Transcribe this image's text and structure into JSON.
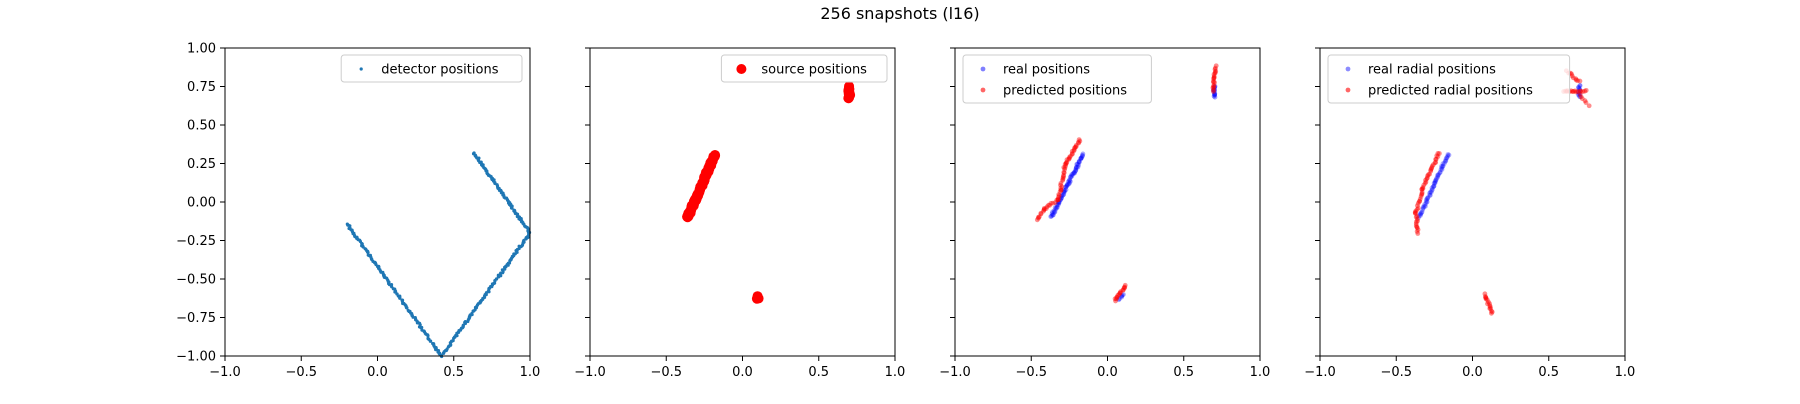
{
  "figure": {
    "title": "256 snapshots (l16)"
  },
  "chart_data": [
    {
      "type": "scatter",
      "id": "p1",
      "xlim": [
        -1.0,
        1.0
      ],
      "ylim": [
        -1.0,
        1.0
      ],
      "xticks": [
        "−1.0",
        "−0.5",
        "0.0",
        "0.5",
        "1.0"
      ],
      "yticks": [
        "−1.00",
        "−0.75",
        "−0.50",
        "−0.25",
        "0.00",
        "0.25",
        "0.50",
        "0.75",
        "1.00"
      ],
      "show_ytick_labels": true,
      "legend_loc": "upper right",
      "series": [
        {
          "name": "detector positions",
          "color": "#1f77b4",
          "marker_size": 1.6,
          "opacity": 1,
          "segments": [
            {
              "from": [
                -0.2,
                -0.14
              ],
              "to": [
                0.42,
                -1.0
              ],
              "n": 130
            },
            {
              "from": [
                0.42,
                -1.0
              ],
              "to": [
                1.0,
                -0.2
              ],
              "n": 130
            },
            {
              "from": [
                1.0,
                -0.2
              ],
              "to": [
                0.63,
                0.32
              ],
              "n": 90
            }
          ]
        }
      ]
    },
    {
      "type": "scatter",
      "id": "p2",
      "xlim": [
        -1.0,
        1.0
      ],
      "ylim": [
        -1.0,
        1.0
      ],
      "xticks": [
        "−1.0",
        "−0.5",
        "0.0",
        "0.5",
        "1.0"
      ],
      "yticks": [
        "−1.00",
        "−0.75",
        "−0.50",
        "−0.25",
        "0.00",
        "0.25",
        "0.50",
        "0.75",
        "1.00"
      ],
      "show_ytick_labels": false,
      "legend_loc": "upper right",
      "series": [
        {
          "name": "source positions",
          "color": "#ff0000",
          "marker_size": 5,
          "opacity": 1,
          "segments": [
            {
              "from": [
                -0.36,
                -0.1
              ],
              "to": [
                -0.18,
                0.31
              ],
              "n": 80
            },
            {
              "from": [
                0.7,
                0.67
              ],
              "to": [
                0.7,
                0.75
              ],
              "n": 12
            },
            {
              "from": [
                0.1,
                -0.63
              ],
              "to": [
                0.1,
                -0.61
              ],
              "n": 4
            }
          ]
        }
      ]
    },
    {
      "type": "scatter",
      "id": "p3",
      "xlim": [
        -1.0,
        1.0
      ],
      "ylim": [
        -1.0,
        1.0
      ],
      "xticks": [
        "−1.0",
        "−0.5",
        "0.0",
        "0.5",
        "1.0"
      ],
      "yticks": [
        "−1.00",
        "−0.75",
        "−0.50",
        "−0.25",
        "0.00",
        "0.25",
        "0.50",
        "0.75",
        "1.00"
      ],
      "show_ytick_labels": false,
      "legend_loc": "upper left",
      "series": [
        {
          "name": "real positions",
          "color": "#0000ff",
          "marker_size": 2.4,
          "opacity": 0.35,
          "segments": [
            {
              "from": [
                -0.37,
                -0.1
              ],
              "to": [
                -0.16,
                0.31
              ],
              "n": 70
            },
            {
              "from": [
                0.7,
                0.68
              ],
              "to": [
                0.7,
                0.75
              ],
              "n": 14
            },
            {
              "from": [
                0.08,
                -0.63
              ],
              "to": [
                0.1,
                -0.6
              ],
              "n": 6
            }
          ]
        },
        {
          "name": "predicted positions",
          "color": "#ff0000",
          "marker_size": 2.4,
          "opacity": 0.45,
          "segments": [
            {
              "from": [
                -0.46,
                -0.12
              ],
              "to": [
                -0.42,
                -0.05
              ],
              "n": 8
            },
            {
              "from": [
                -0.42,
                -0.05
              ],
              "to": [
                -0.32,
                0.02
              ],
              "n": 12
            },
            {
              "from": [
                -0.32,
                0.02
              ],
              "to": [
                -0.28,
                0.24
              ],
              "n": 22
            },
            {
              "from": [
                -0.28,
                0.24
              ],
              "to": [
                -0.18,
                0.4
              ],
              "n": 22
            },
            {
              "from": [
                0.69,
                0.72
              ],
              "to": [
                0.71,
                0.88
              ],
              "n": 20
            },
            {
              "from": [
                0.05,
                -0.64
              ],
              "to": [
                0.12,
                -0.54
              ],
              "n": 16
            }
          ]
        }
      ]
    },
    {
      "type": "scatter",
      "id": "p4",
      "xlim": [
        -1.0,
        1.0
      ],
      "ylim": [
        -1.0,
        1.0
      ],
      "xticks": [
        "−1.0",
        "−0.5",
        "0.0",
        "0.5",
        "1.0"
      ],
      "yticks": [
        "−1.00",
        "−0.75",
        "−0.50",
        "−0.25",
        "0.00",
        "0.25",
        "0.50",
        "0.75",
        "1.00"
      ],
      "show_ytick_labels": false,
      "legend_loc": "upper left",
      "series": [
        {
          "name": "real radial positions",
          "color": "#0000ff",
          "marker_size": 2.4,
          "opacity": 0.3,
          "segments": [
            {
              "from": [
                -0.35,
                -0.1
              ],
              "to": [
                -0.16,
                0.31
              ],
              "n": 60
            },
            {
              "from": [
                0.7,
                0.68
              ],
              "to": [
                0.7,
                0.76
              ],
              "n": 14
            }
          ]
        },
        {
          "name": "predicted radial positions",
          "color": "#ff0000",
          "marker_size": 2.4,
          "opacity": 0.45,
          "segments": [
            {
              "from": [
                -0.36,
                -0.2
              ],
              "to": [
                -0.37,
                -0.07
              ],
              "n": 14
            },
            {
              "from": [
                -0.37,
                -0.07
              ],
              "to": [
                -0.33,
                0.08
              ],
              "n": 14
            },
            {
              "from": [
                -0.33,
                0.08
              ],
              "to": [
                -0.22,
                0.32
              ],
              "n": 26
            },
            {
              "from": [
                0.6,
                0.72
              ],
              "to": [
                0.74,
                0.72
              ],
              "n": 16
            },
            {
              "from": [
                0.62,
                0.85
              ],
              "to": [
                0.7,
                0.78
              ],
              "n": 10
            },
            {
              "from": [
                0.7,
                0.7
              ],
              "to": [
                0.76,
                0.63
              ],
              "n": 6
            },
            {
              "from": [
                0.08,
                -0.6
              ],
              "to": [
                0.13,
                -0.72
              ],
              "n": 16
            }
          ]
        }
      ]
    }
  ]
}
